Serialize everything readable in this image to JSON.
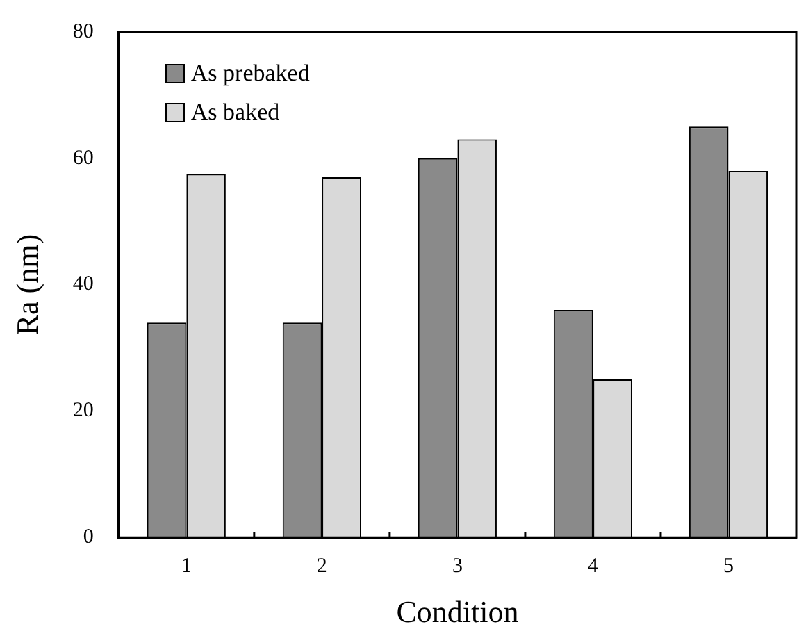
{
  "chart_data": {
    "type": "bar",
    "xlabel": "Condition",
    "ylabel": "Ra (nm)",
    "categories": [
      "1",
      "2",
      "3",
      "4",
      "5"
    ],
    "series": [
      {
        "name": "As prebaked",
        "color": "#8a8a8a",
        "values": [
          34,
          34,
          60,
          36,
          65
        ]
      },
      {
        "name": "As baked",
        "color": "#d9d9d9",
        "values": [
          57.5,
          57,
          63,
          25,
          58
        ]
      }
    ],
    "ylim": [
      0,
      80
    ],
    "yticks": [
      0,
      20,
      40,
      60,
      80
    ],
    "grid": false,
    "legend": "top left"
  }
}
